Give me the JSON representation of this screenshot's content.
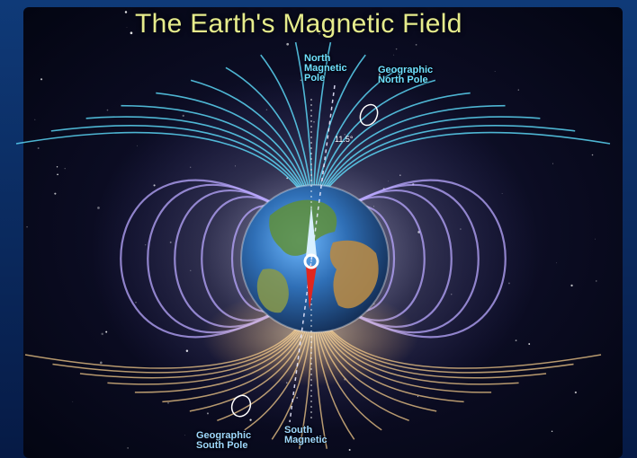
{
  "title": "The Earth's Magnetic Field",
  "labels": {
    "north_magnetic_pole": [
      "North",
      "Magnetic",
      "Pole"
    ],
    "geographic_north_pole": [
      "Geographic",
      "North Pole"
    ],
    "geographic_south_pole": [
      "Geographic",
      "South Pole"
    ],
    "south_magnetic_pole": [
      "South",
      "Magnetic"
    ],
    "deflection_angle": "11.5°"
  },
  "colors": {
    "north_field_lines": "#5fe0ff",
    "south_field_lines": "#f2c98a",
    "outer_field_lines": "#b9a8ff",
    "compass_needle": "#e0261e",
    "title": "#e6ec8c"
  }
}
